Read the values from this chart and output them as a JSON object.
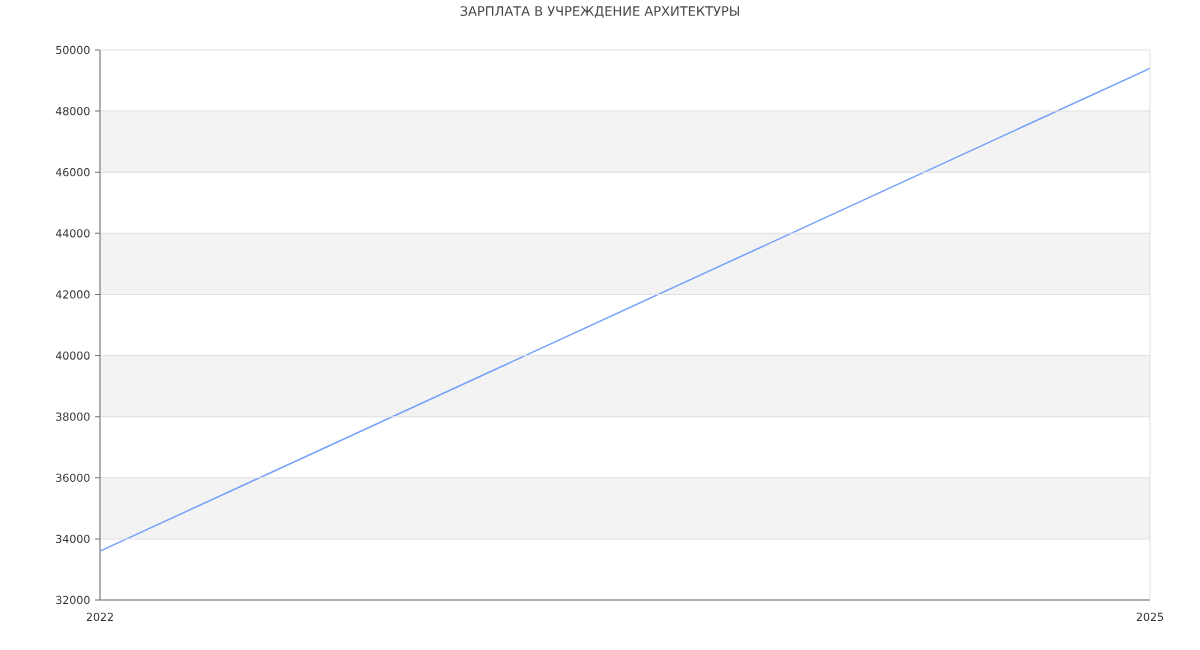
{
  "chart_data": {
    "type": "line",
    "title": "ЗАРПЛАТА В УЧРЕЖДЕНИЕ АРХИТЕКТУРЫ",
    "x": [
      2022,
      2025
    ],
    "series": [
      {
        "color": "#73a0fa",
        "values": [
          33600,
          49400
        ]
      }
    ],
    "xlim": [
      2022,
      2025
    ],
    "xticks": [
      2022,
      2025
    ],
    "ylim": [
      32000,
      50000
    ],
    "yticks": [
      32000,
      34000,
      36000,
      38000,
      40000,
      42000,
      44000,
      46000,
      48000,
      50000
    ],
    "grid": true,
    "bands": [
      {
        "axis": "y",
        "from": 34000,
        "to": 36000,
        "color": "#f3f3f3"
      },
      {
        "axis": "y",
        "from": 38000,
        "to": 40000,
        "color": "#f3f3f3"
      },
      {
        "axis": "y",
        "from": 42000,
        "to": 44000,
        "color": "#f3f3f3"
      },
      {
        "axis": "y",
        "from": 46000,
        "to": 48000,
        "color": "#f3f3f3"
      }
    ]
  }
}
